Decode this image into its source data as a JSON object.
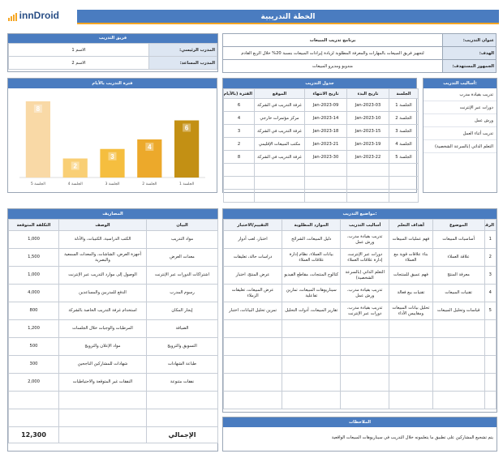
{
  "logo": {
    "text": "innDroid"
  },
  "title": "الخطة التدريبية",
  "info": {
    "fields": [
      {
        "label": "عنوان التدريب:",
        "value": "برنامج تدريب المبيعات"
      },
      {
        "label": "الهدف:",
        "value": "لتجهيز فريق المبيعات بالمهارات والمعرفة المطلوبة لزيادة إيرادات المبيعات بنسبة 20% خلال الربع القادم"
      },
      {
        "label": "الجمهور المستهدف:",
        "value": "مندوبو ومديرو المبيعات"
      }
    ]
  },
  "team": {
    "header": "فريق التدريب",
    "rows": [
      {
        "label": "المدرب الرئيسي:",
        "value": "الاسم 1"
      },
      {
        "label": "المدرب المساعد:",
        "value": "الاسم 2"
      }
    ]
  },
  "methods": {
    "header": "أساليب التدريب:",
    "items": [
      "تدريب بقيادة مدرب",
      "دورات عبر الإنترنت",
      "ورش عمل",
      "تدريب أثناء العمل",
      "التعلم الذاتي (بالسرعة الشخصية)"
    ]
  },
  "schedule": {
    "header": "جدول التدريب",
    "columns": [
      "الجلسة",
      "تاريخ البدء",
      "تاريخ الانتهاء",
      "الموقع",
      "الفترة (بالأيام)"
    ],
    "rows": [
      [
        "الجلسة 1",
        "03-Jan-2023",
        "09-Jan-2023",
        "غرفة التدريب في الشركة",
        "6"
      ],
      [
        "الجلسة 2",
        "10-Jan-2023",
        "14-Jan-2023",
        "مركز مؤتمرات خارجي",
        "4"
      ],
      [
        "الجلسة 3",
        "15-Jan-2023",
        "18-Jan-2023",
        "غرفة التدريب في الشركة",
        "3"
      ],
      [
        "الجلسة 4",
        "19-Jan-2023",
        "21-Jan-2023",
        "مكتب المبيعات الإقليمي",
        "2"
      ],
      [
        "الجلسة 5",
        "22-Jan-2023",
        "30-Jan-2023",
        "غرفة التدريب في الشركة",
        "8"
      ]
    ]
  },
  "chart_data": {
    "type": "bar",
    "title": "فترة التدريب بالأيام",
    "categories": [
      "الجلسة 1",
      "الجلسة 2",
      "الجلسة 3",
      "الجلسة 4",
      "الجلسة 5"
    ],
    "values": [
      6,
      4,
      3,
      2,
      8
    ],
    "colors": [
      "#c39014",
      "#eca92b",
      "#f5be3f",
      "#f9cf75",
      "#f9d9a6"
    ],
    "grid": false
  },
  "topics": {
    "header": "مواضيع التدريب:",
    "columns": [
      "الرقم",
      "الموضوع",
      "أهداف التعلم",
      "أساليب التدريب",
      "الموارد المطلوبة",
      "التقييم/الاختبار"
    ],
    "rows": [
      [
        "1",
        "أساسيات المبيعات",
        "فهم عمليات المبيعات",
        "تدريب بقيادة مدرب، ورش عمل",
        "دليل المبيعات، الشرائح",
        "اختبار، لعب أدوار"
      ],
      [
        "2",
        "علاقة العملاء",
        "بناء علاقات قوية مع العملاء",
        "دورات عبر الإنترنت، إدارة علاقات العملاء",
        "بيانات العملاء، نظام إدارة علاقات العملاء",
        "دراسات حالة، تعليقات"
      ],
      [
        "3",
        "معرفة المنتج",
        "فهم عميق للمنتجات",
        "التعلم الذاتي (بالسرعة الشخصية)",
        "كتالوج المنتجات، مقاطع الفيديو",
        "عرض المنتج، اختبار"
      ],
      [
        "4",
        "تقنيات المبيعات",
        "تقنيات بيع فعالة",
        "تدريب بقيادة مدرب، ورش عمل",
        "سيناريوهات المبيعات، تمارين تفاعلية",
        "عرض المبيعات، تعليقات الزملاء"
      ],
      [
        "5",
        "قياسات وتحليل المبيعات",
        "تحليل بيانات المبيعات ومقاييس الأداء",
        "تدريب بقيادة مدرب، دورات عبر الإنترنت",
        "تقارير المبيعات، أدوات التحليل",
        "تمرين تحليل البيانات، اختبار"
      ]
    ],
    "empty_rows": 5
  },
  "notes": {
    "header": "الملاحظات",
    "text": "يتم تشجيع المشاركين على تطبيق ما يتعلمونه خلال التدريب في سيناريوهات المبيعات الواقعية"
  },
  "expenses": {
    "header": "المصاريف",
    "columns": [
      "البيان",
      "الوصف",
      "التكلفة المتوقعة"
    ],
    "rows": [
      [
        "مواد التدريب",
        "الكتب الدراسية، الكتيبات، والأدلة",
        "1,000"
      ],
      [
        "معدات العرض",
        "أجهزة العرض، الشاشات، والمعدات السمعية والبصرية",
        "1,500"
      ],
      [
        "اشتراكات الدورات عبر الإنترنت",
        "الوصول إلى موارد التدريب عبر الإنترنت",
        "1,000"
      ],
      [
        "رسوم المدرب",
        "الدفع للمدربين والمساعدين",
        "4,000"
      ],
      [
        "إيجار المكان",
        "استخدام غرفة التدريب الخاصة بالشركة",
        "800"
      ],
      [
        "الضيافة",
        "المرطبات والوجبات خلال الجلسات",
        "1,200"
      ],
      [
        "التسويق والترويج",
        "مواد الإعلان والترويج",
        "500"
      ],
      [
        "طباعة الشهادات",
        "شهادات للمشاركين الناجحين",
        "300"
      ],
      [
        "نفقات متنوعة",
        "النفقات غير المتوقعة والاحتياطيات",
        "2,000"
      ]
    ],
    "empty_rows": 2,
    "total_label": "الإجمالي",
    "total_value": "12,300"
  }
}
